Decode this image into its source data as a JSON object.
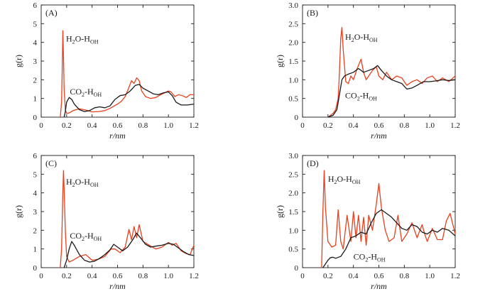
{
  "chart_data": [
    {
      "type": "line",
      "panel_label": "(A)",
      "xlabel": "r/nm",
      "ylabel": "g(r)",
      "xlim": [
        0,
        1.2
      ],
      "ylim": [
        0,
        6
      ],
      "xticks": [
        0,
        0.2,
        0.4,
        0.6,
        0.8,
        1.0,
        1.2
      ],
      "xtick_labels": [
        "0",
        "0.2",
        "0.4",
        "0.6",
        "0.8",
        "1.0",
        "1.2"
      ],
      "yticks": [
        0,
        1,
        2,
        3,
        4,
        5,
        6
      ],
      "ytick_labels": [
        "0",
        "1",
        "2",
        "3",
        "4",
        "5",
        "6"
      ],
      "annotations": [
        {
          "main": "H",
          "sub1": "2",
          "mid": "O-H",
          "sub2": "OH",
          "series": "H2O-HOH",
          "at": [
            0.195,
            4.05
          ]
        },
        {
          "main": "CO",
          "sub1": "2",
          "mid": "-H",
          "sub2": "OH",
          "series": "CO2-HOH",
          "at": [
            0.225,
            1.22
          ]
        }
      ],
      "series": [
        {
          "key": "H2O-HOH",
          "color": "#e8401c",
          "x": [
            0.15,
            0.16,
            0.165,
            0.17,
            0.175,
            0.18,
            0.19,
            0.2,
            0.22,
            0.25,
            0.3,
            0.35,
            0.4,
            0.45,
            0.5,
            0.55,
            0.6,
            0.63,
            0.66,
            0.69,
            0.71,
            0.73,
            0.75,
            0.77,
            0.79,
            0.82,
            0.86,
            0.9,
            0.94,
            0.97,
            1.0,
            1.02,
            1.05,
            1.08,
            1.11,
            1.14,
            1.17,
            1.2
          ],
          "y": [
            0,
            0.8,
            2.5,
            4.62,
            3.2,
            1.5,
            0.4,
            0.2,
            0.22,
            0.35,
            0.45,
            0.38,
            0.28,
            0.3,
            0.35,
            0.5,
            0.7,
            0.85,
            1.1,
            1.6,
            1.95,
            1.8,
            2.1,
            1.95,
            1.4,
            1.1,
            1.0,
            1.05,
            1.2,
            1.3,
            1.4,
            1.35,
            1.1,
            1.2,
            1.15,
            1.05,
            1.2,
            1.2
          ]
        },
        {
          "key": "CO2-HOH",
          "color": "#1a1a1a",
          "x": [
            0.18,
            0.19,
            0.2,
            0.22,
            0.24,
            0.26,
            0.3,
            0.34,
            0.38,
            0.42,
            0.46,
            0.5,
            0.54,
            0.58,
            0.62,
            0.66,
            0.7,
            0.74,
            0.77,
            0.8,
            0.84,
            0.88,
            0.92,
            0.96,
            1.0,
            1.03,
            1.06,
            1.1,
            1.15,
            1.2
          ],
          "y": [
            0,
            0.3,
            0.8,
            1.05,
            0.95,
            0.7,
            0.4,
            0.3,
            0.35,
            0.5,
            0.55,
            0.5,
            0.6,
            0.95,
            1.15,
            1.2,
            1.4,
            1.7,
            1.75,
            1.55,
            1.4,
            1.25,
            1.2,
            1.3,
            1.35,
            1.15,
            0.8,
            0.65,
            0.65,
            0.7
          ]
        }
      ]
    },
    {
      "type": "line",
      "panel_label": "(B)",
      "xlabel": "r/nm",
      "ylabel": "g(r)",
      "xlim": [
        0,
        1.2
      ],
      "ylim": [
        0,
        3.0
      ],
      "xticks": [
        0,
        0.2,
        0.4,
        0.6,
        0.8,
        1.0,
        1.2
      ],
      "xtick_labels": [
        "0",
        "0.2",
        "0.4",
        "0.6",
        "0.8",
        "1.0",
        "1.2"
      ],
      "yticks": [
        0,
        0.5,
        1.0,
        1.5,
        2.0,
        2.5,
        3.0
      ],
      "ytick_labels": [
        "0",
        "0.5",
        "1.0",
        "1.5",
        "2.0",
        "2.5",
        "3.0"
      ],
      "annotations": [
        {
          "main": "H",
          "sub1": "2",
          "mid": "O-H",
          "sub2": "OH",
          "series": "H2O-HOH",
          "at": [
            0.335,
            2.07
          ]
        },
        {
          "main": "CO",
          "sub1": "2",
          "mid": "-H",
          "sub2": "OH",
          "series": "CO2-HOH",
          "at": [
            0.335,
            0.5
          ]
        }
      ],
      "series": [
        {
          "key": "H2O-HOH",
          "color": "#e8401c",
          "x": [
            0.2,
            0.22,
            0.24,
            0.26,
            0.28,
            0.29,
            0.3,
            0.31,
            0.32,
            0.34,
            0.36,
            0.38,
            0.4,
            0.43,
            0.46,
            0.48,
            0.5,
            0.52,
            0.55,
            0.58,
            0.6,
            0.63,
            0.66,
            0.7,
            0.74,
            0.78,
            0.82,
            0.86,
            0.9,
            0.94,
            0.98,
            1.02,
            1.06,
            1.1,
            1.15,
            1.2
          ],
          "y": [
            0,
            0.05,
            0.1,
            0.2,
            0.5,
            1.2,
            2.1,
            2.4,
            1.8,
            0.95,
            0.9,
            1.1,
            1.0,
            1.3,
            1.55,
            1.2,
            1.0,
            1.1,
            1.25,
            1.35,
            1.1,
            1.0,
            1.2,
            1.0,
            1.1,
            1.05,
            0.85,
            0.95,
            1.0,
            0.9,
            1.05,
            1.1,
            0.95,
            1.05,
            0.95,
            1.1
          ]
        },
        {
          "key": "CO2-HOH",
          "color": "#1a1a1a",
          "x": [
            0.2,
            0.24,
            0.27,
            0.29,
            0.31,
            0.33,
            0.36,
            0.4,
            0.44,
            0.48,
            0.52,
            0.56,
            0.59,
            0.62,
            0.66,
            0.7,
            0.74,
            0.78,
            0.82,
            0.86,
            0.9,
            0.95,
            1.0,
            1.05,
            1.1,
            1.15,
            1.2
          ],
          "y": [
            0,
            0.05,
            0.2,
            0.6,
            1.0,
            1.1,
            1.15,
            1.2,
            1.3,
            1.2,
            1.25,
            1.3,
            1.38,
            1.25,
            1.1,
            1.0,
            0.95,
            0.9,
            0.75,
            0.78,
            0.85,
            0.95,
            0.95,
            0.97,
            1.0,
            0.98,
            1.0
          ]
        }
      ]
    },
    {
      "type": "line",
      "panel_label": "(C)",
      "xlabel": "r/nm",
      "ylabel": "g(r)",
      "xlim": [
        0,
        1.2
      ],
      "ylim": [
        0,
        6
      ],
      "xticks": [
        0,
        0.2,
        0.4,
        0.6,
        0.8,
        1.0,
        1.2
      ],
      "xtick_labels": [
        "0",
        "0.2",
        "0.4",
        "0.6",
        "0.8",
        "1.0",
        "1.2"
      ],
      "yticks": [
        0,
        1,
        2,
        3,
        4,
        5,
        6
      ],
      "ytick_labels": [
        "0",
        "1",
        "2",
        "3",
        "4",
        "5",
        "6"
      ],
      "annotations": [
        {
          "main": "H",
          "sub1": "2",
          "mid": "O-H",
          "sub2": "OH",
          "series": "H2O-HOH",
          "at": [
            0.195,
            4.45
          ]
        },
        {
          "main": "CO",
          "sub1": "2",
          "mid": "-H",
          "sub2": "OH",
          "series": "CO2-HOH",
          "at": [
            0.225,
            1.55
          ]
        }
      ],
      "series": [
        {
          "key": "H2O-HOH",
          "color": "#e8401c",
          "x": [
            0.15,
            0.16,
            0.17,
            0.175,
            0.18,
            0.19,
            0.2,
            0.22,
            0.25,
            0.3,
            0.35,
            0.4,
            0.45,
            0.5,
            0.55,
            0.58,
            0.62,
            0.66,
            0.69,
            0.71,
            0.73,
            0.75,
            0.77,
            0.8,
            0.85,
            0.9,
            0.95,
            1.0,
            1.03,
            1.06,
            1.1,
            1.14,
            1.17,
            1.2
          ],
          "y": [
            0,
            1.0,
            4.0,
            5.2,
            4.2,
            2.0,
            0.6,
            0.3,
            0.4,
            0.6,
            0.7,
            0.4,
            0.45,
            0.6,
            1.0,
            1.0,
            0.8,
            1.1,
            2.05,
            1.5,
            2.2,
            1.6,
            2.3,
            1.4,
            1.2,
            1.0,
            1.1,
            1.35,
            1.2,
            1.3,
            0.9,
            0.75,
            0.7,
            1.2
          ]
        },
        {
          "key": "CO2-HOH",
          "color": "#1a1a1a",
          "x": [
            0.18,
            0.2,
            0.22,
            0.24,
            0.26,
            0.3,
            0.34,
            0.38,
            0.42,
            0.46,
            0.5,
            0.54,
            0.57,
            0.6,
            0.64,
            0.68,
            0.72,
            0.75,
            0.78,
            0.82,
            0.86,
            0.9,
            0.95,
            1.0,
            1.04,
            1.08,
            1.12,
            1.16,
            1.2
          ],
          "y": [
            0,
            0.4,
            1.0,
            1.4,
            1.2,
            0.7,
            0.4,
            0.3,
            0.35,
            0.5,
            0.7,
            0.95,
            1.25,
            1.1,
            0.9,
            1.1,
            1.5,
            1.85,
            1.6,
            1.25,
            1.1,
            1.15,
            1.2,
            1.3,
            1.25,
            1.05,
            0.85,
            0.7,
            0.65
          ]
        }
      ]
    },
    {
      "type": "line",
      "panel_label": "(D)",
      "xlabel": "r/nm",
      "ylabel": "g(r)",
      "xlim": [
        0,
        1.2
      ],
      "ylim": [
        0,
        3.0
      ],
      "xticks": [
        0,
        0.2,
        0.4,
        0.6,
        0.8,
        1.0,
        1.2
      ],
      "xtick_labels": [
        "0",
        "0.2",
        "0.4",
        "0.6",
        "0.8",
        "1.0",
        "1.2"
      ],
      "yticks": [
        0,
        0.5,
        1.0,
        1.5,
        2.0,
        2.5,
        3.0
      ],
      "ytick_labels": [
        "0",
        "0.5",
        "1.0",
        "1.5",
        "2.0",
        "2.5",
        "3.0"
      ],
      "annotations": [
        {
          "main": "H",
          "sub1": "2",
          "mid": "O-H",
          "sub2": "OH",
          "series": "H2O-HOH",
          "at": [
            0.2,
            2.3
          ]
        },
        {
          "main": "CO",
          "sub1": "2",
          "mid": "-H",
          "sub2": "OH",
          "series": "CO2-HOH",
          "at": [
            0.4,
            0.22
          ]
        }
      ],
      "series": [
        {
          "key": "H2O-HOH",
          "color": "#e8401c",
          "x": [
            0.15,
            0.16,
            0.17,
            0.18,
            0.2,
            0.23,
            0.26,
            0.28,
            0.3,
            0.32,
            0.35,
            0.38,
            0.4,
            0.42,
            0.44,
            0.46,
            0.48,
            0.5,
            0.52,
            0.55,
            0.58,
            0.6,
            0.62,
            0.65,
            0.68,
            0.72,
            0.75,
            0.78,
            0.82,
            0.86,
            0.88,
            0.9,
            0.94,
            0.96,
            0.98,
            1.02,
            1.06,
            1.1,
            1.13,
            1.16,
            1.2
          ],
          "y": [
            0,
            1.5,
            2.6,
            1.6,
            0.7,
            0.55,
            0.6,
            1.55,
            0.7,
            0.5,
            1.4,
            0.7,
            1.5,
            0.8,
            1.4,
            0.7,
            1.35,
            0.6,
            1.4,
            1.0,
            1.7,
            2.25,
            1.6,
            1.0,
            0.7,
            0.8,
            1.4,
            0.7,
            0.9,
            1.2,
            1.0,
            0.8,
            1.15,
            0.9,
            0.7,
            1.05,
            0.75,
            0.75,
            1.25,
            1.45,
            0.9
          ]
        },
        {
          "key": "CO2-HOH",
          "color": "#1a1a1a",
          "x": [
            0.16,
            0.18,
            0.2,
            0.22,
            0.24,
            0.26,
            0.3,
            0.34,
            0.38,
            0.42,
            0.46,
            0.5,
            0.54,
            0.58,
            0.62,
            0.66,
            0.7,
            0.74,
            0.78,
            0.82,
            0.86,
            0.9,
            0.94,
            0.98,
            1.02,
            1.06,
            1.1,
            1.15,
            1.2
          ],
          "y": [
            0,
            0.1,
            0.2,
            0.27,
            0.28,
            0.25,
            0.3,
            0.5,
            0.8,
            0.85,
            0.95,
            0.9,
            1.2,
            1.45,
            1.55,
            1.45,
            1.35,
            1.2,
            1.05,
            1.0,
            1.15,
            1.1,
            0.95,
            0.9,
            1.0,
            0.95,
            1.05,
            1.0,
            0.85
          ]
        }
      ]
    }
  ]
}
